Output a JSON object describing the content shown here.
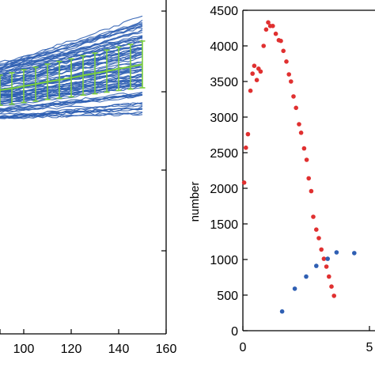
{
  "chart_data": [
    {
      "type": "line",
      "description_panel": "left",
      "xlim": [
        86,
        160
      ],
      "ylim": [
        0,
        1
      ],
      "xticks": [
        100,
        120,
        140,
        160
      ],
      "xtick_labels": [
        "100",
        "120",
        "140",
        "160"
      ],
      "series": [
        {
          "kind": "mean_with_error_bars",
          "color": "#7dcf3e",
          "x": [
            90,
            95,
            100,
            105,
            110,
            115,
            120,
            125,
            130,
            135,
            140,
            145,
            150
          ],
          "y": [
            0.73,
            0.735,
            0.742,
            0.748,
            0.755,
            0.761,
            0.767,
            0.774,
            0.78,
            0.787,
            0.794,
            0.8,
            0.807
          ],
          "err": [
            0.045,
            0.047,
            0.049,
            0.051,
            0.053,
            0.055,
            0.057,
            0.059,
            0.061,
            0.063,
            0.065,
            0.067,
            0.07
          ]
        },
        {
          "kind": "ensemble_band",
          "color": "#2f5fb3",
          "x": [
            86,
            150
          ],
          "spread": 0.12
        }
      ]
    },
    {
      "type": "scatter",
      "description_panel": "right",
      "ylabel": "number",
      "xlim": [
        0,
        5
      ],
      "ylim": [
        0,
        4500
      ],
      "yticks": [
        0,
        500,
        1000,
        1500,
        2000,
        2500,
        3000,
        3500,
        4000,
        4500
      ],
      "ytick_labels": [
        "0",
        "500",
        "1000",
        "1500",
        "2000",
        "2500",
        "3000",
        "3500",
        "4000",
        "4500"
      ],
      "xticks": [
        0,
        5
      ],
      "xtick_labels": [
        "0",
        "5"
      ],
      "series": [
        {
          "color": "#e03030",
          "points": [
            [
              0.05,
              2080
            ],
            [
              0.12,
              2570
            ],
            [
              0.2,
              2760
            ],
            [
              0.3,
              3370
            ],
            [
              0.38,
              3610
            ],
            [
              0.45,
              3720
            ],
            [
              0.55,
              3520
            ],
            [
              0.62,
              3680
            ],
            [
              0.7,
              3640
            ],
            [
              0.82,
              4000
            ],
            [
              0.92,
              4230
            ],
            [
              1.0,
              4330
            ],
            [
              1.08,
              4280
            ],
            [
              1.18,
              4280
            ],
            [
              1.3,
              4170
            ],
            [
              1.42,
              4080
            ],
            [
              1.5,
              4070
            ],
            [
              1.6,
              3930
            ],
            [
              1.72,
              3780
            ],
            [
              1.82,
              3600
            ],
            [
              1.9,
              3500
            ],
            [
              2.0,
              3290
            ],
            [
              2.1,
              3130
            ],
            [
              2.22,
              2900
            ],
            [
              2.3,
              2780
            ],
            [
              2.42,
              2560
            ],
            [
              2.52,
              2400
            ],
            [
              2.6,
              2140
            ],
            [
              2.7,
              1960
            ],
            [
              2.78,
              1600
            ],
            [
              2.9,
              1420
            ],
            [
              3.0,
              1300
            ],
            [
              3.1,
              1140
            ],
            [
              3.2,
              1010
            ],
            [
              3.3,
              900
            ],
            [
              3.4,
              760
            ],
            [
              3.5,
              620
            ],
            [
              3.6,
              490
            ]
          ]
        },
        {
          "color": "#2f5fb3",
          "points": [
            [
              1.55,
              270
            ],
            [
              2.05,
              590
            ],
            [
              2.5,
              760
            ],
            [
              2.9,
              910
            ],
            [
              3.35,
              1010
            ],
            [
              3.7,
              1100
            ],
            [
              4.4,
              1090
            ]
          ]
        }
      ]
    }
  ]
}
